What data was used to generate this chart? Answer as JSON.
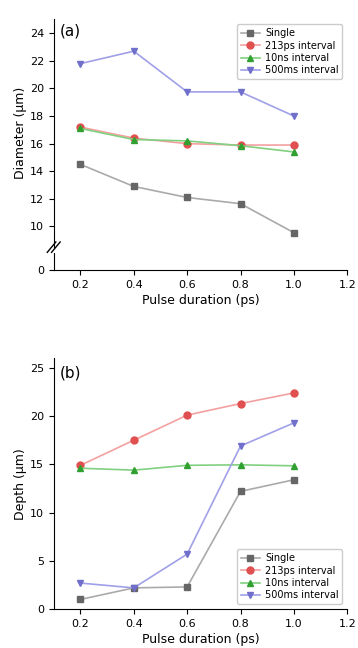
{
  "x": [
    0.2,
    0.4,
    0.6,
    0.8,
    1.0
  ],
  "panel_a": {
    "title": "(a)",
    "ylabel": "Diameter (μm)",
    "xlabel": "Pulse duration (ps)",
    "xlim": [
      0.1,
      1.2
    ],
    "xticks": [
      0.2,
      0.4,
      0.6,
      0.8,
      1.0,
      1.2
    ],
    "series": [
      {
        "label": "Single",
        "y": [
          14.5,
          12.9,
          12.1,
          11.65,
          9.55
        ],
        "color": "#aaaaaa",
        "marker": "s",
        "marker_color": "#666666"
      },
      {
        "label": "213ps interval",
        "y": [
          17.2,
          16.4,
          16.0,
          15.9,
          15.9
        ],
        "color": "#f4a0a0",
        "marker": "o",
        "marker_color": "#e05050"
      },
      {
        "label": "10ns interval",
        "y": [
          17.1,
          16.3,
          16.2,
          15.85,
          15.4
        ],
        "color": "#80d080",
        "marker": "^",
        "marker_color": "#30a030"
      },
      {
        "label": "500ms interval",
        "y": [
          21.8,
          22.7,
          19.75,
          19.75,
          18.0
        ],
        "color": "#a0a0e8",
        "marker": "v",
        "marker_color": "#7070cc"
      }
    ]
  },
  "panel_b": {
    "title": "(b)",
    "ylabel": "Depth (μm)",
    "xlabel": "Pulse duration (ps)",
    "ylim": [
      0,
      26
    ],
    "yticks": [
      0,
      5,
      10,
      15,
      20,
      25
    ],
    "xlim": [
      0.1,
      1.2
    ],
    "xticks": [
      0.2,
      0.4,
      0.6,
      0.8,
      1.0,
      1.2
    ],
    "series": [
      {
        "label": "Single",
        "y": [
          1.0,
          2.2,
          2.3,
          12.2,
          13.4
        ],
        "color": "#aaaaaa",
        "marker": "s",
        "marker_color": "#666666"
      },
      {
        "label": "213ps interval",
        "y": [
          14.9,
          17.5,
          20.1,
          21.3,
          22.4
        ],
        "color": "#f4a0a0",
        "marker": "o",
        "marker_color": "#e05050"
      },
      {
        "label": "10ns interval",
        "y": [
          14.6,
          14.4,
          14.9,
          14.95,
          14.85
        ],
        "color": "#80d080",
        "marker": "^",
        "marker_color": "#30a030"
      },
      {
        "label": "500ms interval",
        "y": [
          2.7,
          2.2,
          5.7,
          16.9,
          19.3
        ],
        "color": "#a0a0e8",
        "marker": "v",
        "marker_color": "#7070cc"
      }
    ]
  }
}
